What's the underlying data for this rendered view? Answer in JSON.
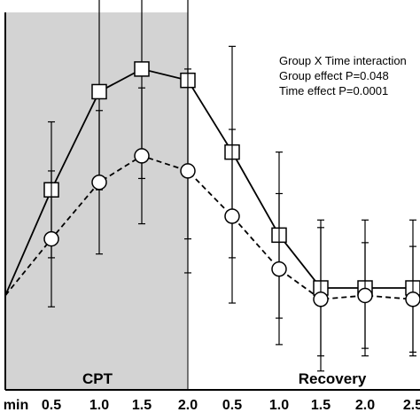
{
  "chart_data": {
    "type": "line",
    "categories": [
      "min",
      "0.5",
      "1.0",
      "1.5",
      "2.0",
      "0.5",
      "1.0",
      "1.5",
      "2.0",
      "2.5"
    ],
    "phases": [
      {
        "label": "CPT",
        "shaded": true,
        "color": "#d3d3d3"
      },
      {
        "label": "Recovery",
        "shaded": false,
        "color": "#ffffff"
      }
    ],
    "annotations": [
      "Group X Time interaction",
      "Group effect P=0.048",
      "Time effect P=0.0001"
    ],
    "significance": {
      "symbol": "*",
      "categories": [
        "1.5",
        "2.0"
      ]
    },
    "ylim": [
      0,
      100
    ],
    "series": [
      {
        "marker": "square",
        "style": "solid",
        "values": [
          25,
          53,
          79,
          85,
          82,
          63,
          41,
          27,
          27,
          27
        ],
        "errors": [
          null,
          18,
          26,
          29,
          42,
          28,
          22,
          18,
          18,
          18
        ]
      },
      {
        "marker": "circle",
        "style": "dashed",
        "values": [
          25,
          40,
          55,
          62,
          58,
          46,
          32,
          24,
          25,
          24
        ],
        "errors": [
          null,
          18,
          19,
          18,
          27,
          23,
          20,
          19,
          14,
          14
        ]
      }
    ]
  }
}
